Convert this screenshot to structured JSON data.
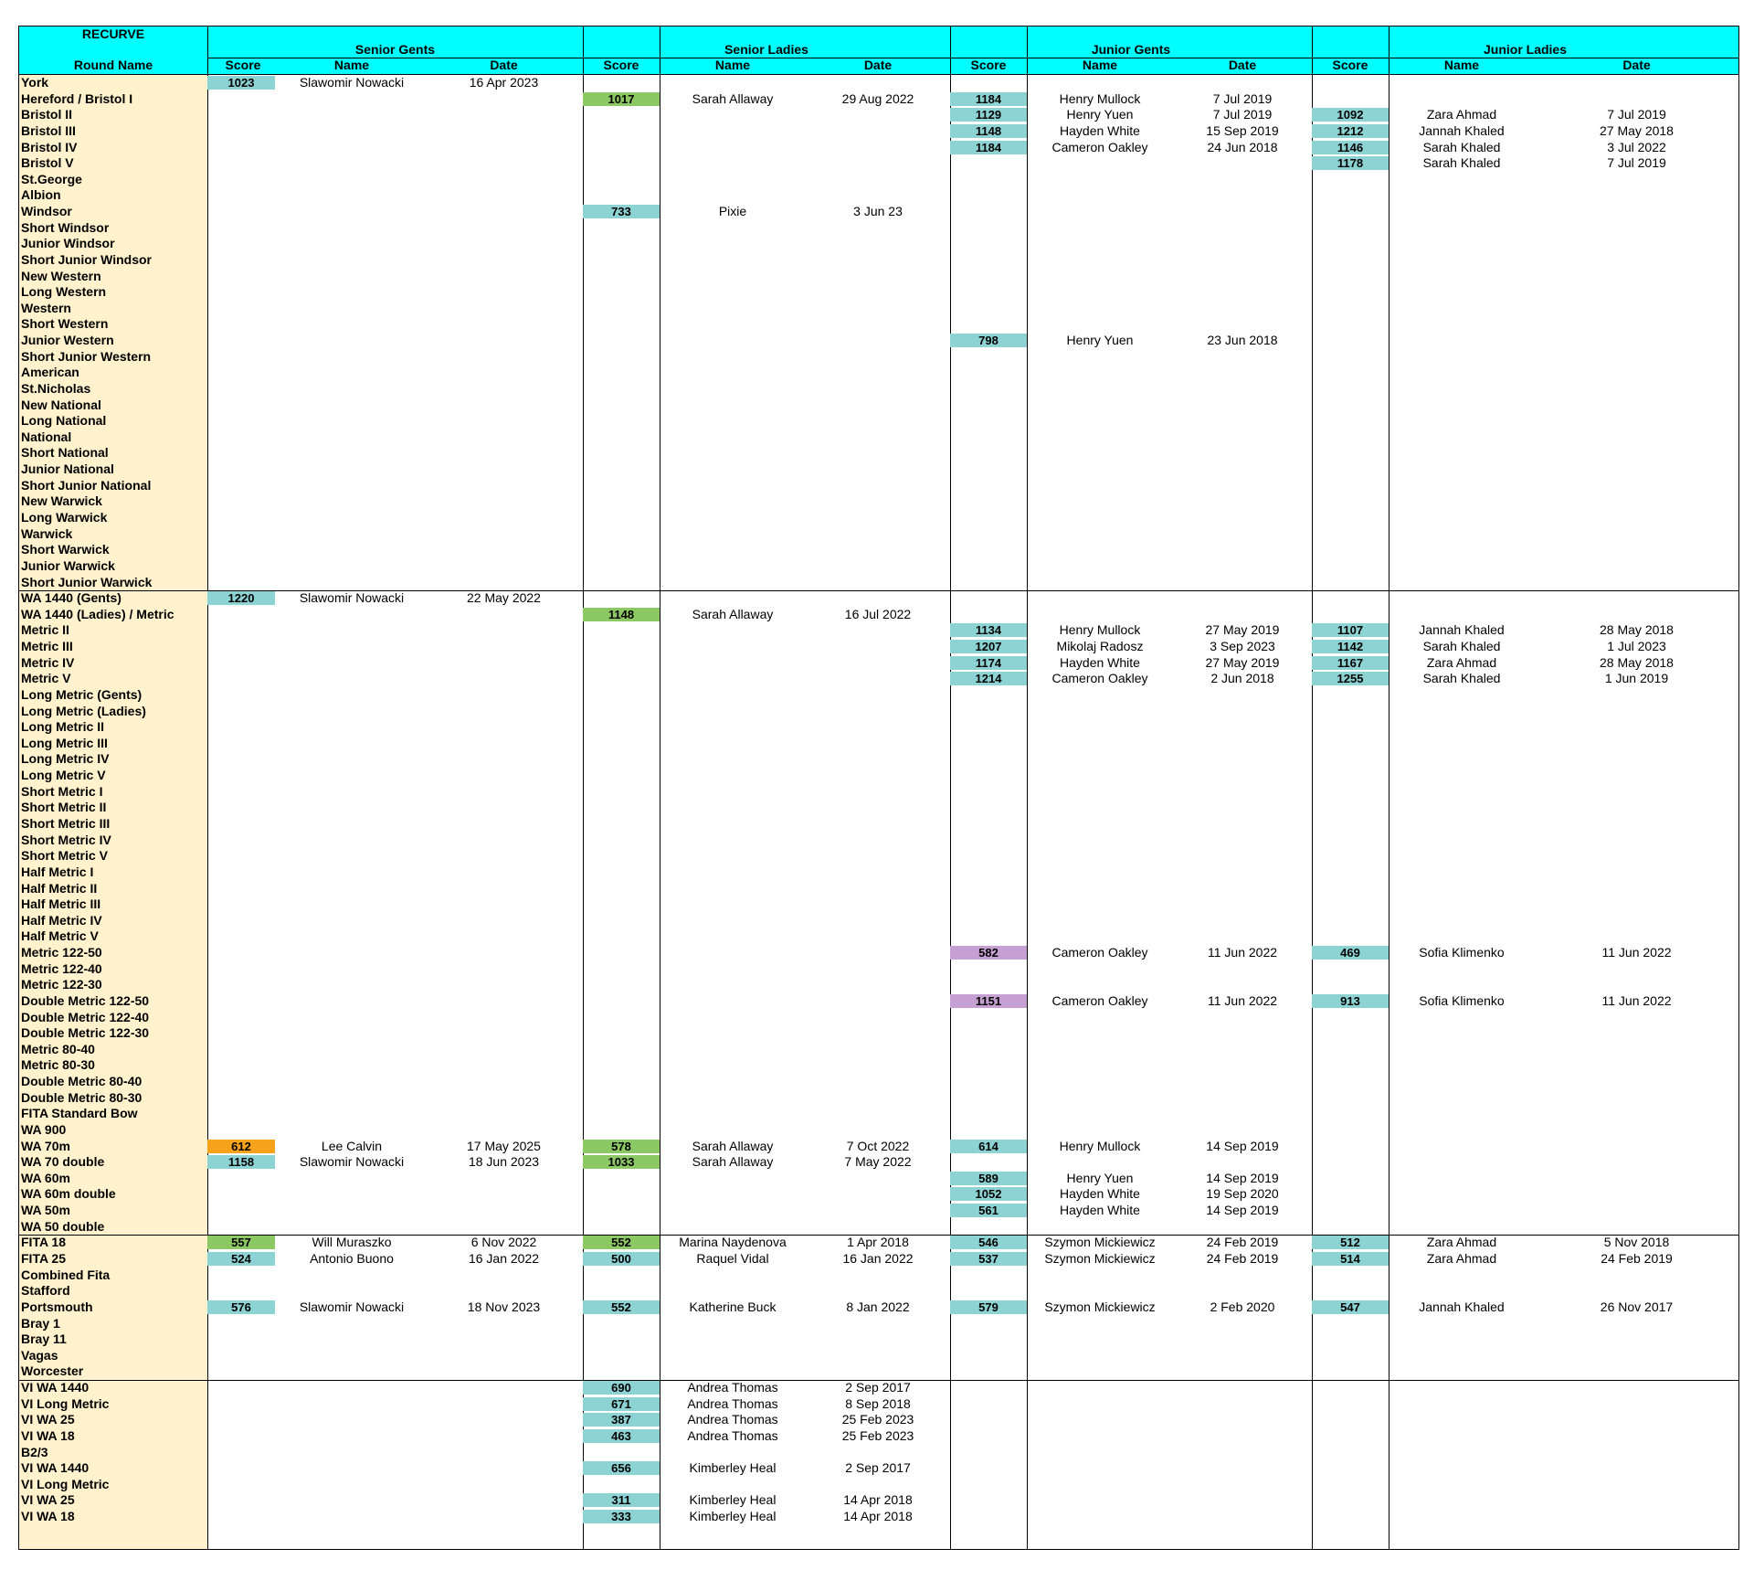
{
  "title": "RECURVE",
  "groups": [
    "Senior Gents",
    "Senior Ladies",
    "Junior Gents",
    "Junior Ladies"
  ],
  "subheaders": {
    "round_name": "Round Name",
    "score": "Score",
    "name": "Name",
    "date": "Date"
  },
  "colors": {
    "header": "#00ffff",
    "round_bg": "#fff2cc",
    "teal": "#8dd3d3",
    "green": "#8cc863",
    "orange": "#f7a21b",
    "purple": "#c7a0d3"
  },
  "rows": [
    {
      "n": "York",
      "sg": [
        "1023",
        "Slawomir Nowacki",
        "16 Apr 2023",
        "teal"
      ]
    },
    {
      "n": "Hereford / Bristol I",
      "sl": [
        "1017",
        "Sarah Allaway",
        "29 Aug 2022",
        "green"
      ],
      "jg": [
        "1184",
        "Henry Mullock",
        "7 Jul 2019",
        "teal"
      ]
    },
    {
      "n": "Bristol II",
      "jg": [
        "1129",
        "Henry Yuen",
        "7 Jul 2019",
        "teal"
      ],
      "jl": [
        "1092",
        "Zara Ahmad",
        "7 Jul 2019",
        "teal"
      ]
    },
    {
      "n": "Bristol III",
      "jg": [
        "1148",
        "Hayden White",
        "15 Sep 2019",
        "teal"
      ],
      "jl": [
        "1212",
        "Jannah Khaled",
        "27 May 2018",
        "teal"
      ]
    },
    {
      "n": "Bristol IV",
      "jg": [
        "1184",
        "Cameron Oakley",
        "24 Jun 2018",
        "teal"
      ],
      "jl": [
        "1146",
        "Sarah Khaled",
        "3 Jul 2022",
        "teal"
      ]
    },
    {
      "n": "Bristol V",
      "jl": [
        "1178",
        "Sarah Khaled",
        "7 Jul 2019",
        "teal"
      ]
    },
    {
      "n": "St.George"
    },
    {
      "n": "Albion"
    },
    {
      "n": "Windsor",
      "sl": [
        "733",
        "Pixie",
        "3 Jun 23",
        "teal"
      ]
    },
    {
      "n": "Short Windsor"
    },
    {
      "n": "Junior Windsor"
    },
    {
      "n": "Short Junior Windsor"
    },
    {
      "n": "New Western"
    },
    {
      "n": "Long Western"
    },
    {
      "n": "Western"
    },
    {
      "n": "Short Western"
    },
    {
      "n": "Junior Western",
      "jg": [
        "798",
        "Henry Yuen",
        "23 Jun 2018",
        "teal"
      ]
    },
    {
      "n": "Short Junior Western"
    },
    {
      "n": "American"
    },
    {
      "n": "St.Nicholas"
    },
    {
      "n": "New National"
    },
    {
      "n": "Long National"
    },
    {
      "n": "National"
    },
    {
      "n": "Short National"
    },
    {
      "n": "Junior National"
    },
    {
      "n": "Short Junior National"
    },
    {
      "n": "New Warwick"
    },
    {
      "n": "Long Warwick"
    },
    {
      "n": "Warwick"
    },
    {
      "n": "Short Warwick"
    },
    {
      "n": "Junior Warwick"
    },
    {
      "n": "Short Junior Warwick"
    },
    {
      "n": "WA 1440 (Gents)",
      "sg": [
        "1220",
        "Slawomir Nowacki",
        "22 May 2022",
        "teal"
      ],
      "sep": true
    },
    {
      "n": "WA 1440 (Ladies) / Metric",
      "sl": [
        "1148",
        "Sarah Allaway",
        "16 Jul 2022",
        "green"
      ]
    },
    {
      "n": "Metric II",
      "jg": [
        "1134",
        "Henry Mullock",
        "27 May 2019",
        "teal"
      ],
      "jl": [
        "1107",
        "Jannah Khaled",
        "28 May 2018",
        "teal"
      ]
    },
    {
      "n": "Metric III",
      "jg": [
        "1207",
        "Mikolaj Radosz",
        "3 Sep 2023",
        "teal"
      ],
      "jl": [
        "1142",
        "Sarah Khaled",
        "1 Jul 2023",
        "teal"
      ]
    },
    {
      "n": "Metric IV",
      "jg": [
        "1174",
        "Hayden White",
        "27 May 2019",
        "teal"
      ],
      "jl": [
        "1167",
        "Zara Ahmad",
        "28 May 2018",
        "teal"
      ]
    },
    {
      "n": "Metric V",
      "jg": [
        "1214",
        "Cameron Oakley",
        "2 Jun 2018",
        "teal"
      ],
      "jl": [
        "1255",
        "Sarah Khaled",
        "1 Jun 2019",
        "teal"
      ]
    },
    {
      "n": "Long Metric (Gents)"
    },
    {
      "n": "Long Metric (Ladies)"
    },
    {
      "n": "Long Metric II"
    },
    {
      "n": "Long Metric III"
    },
    {
      "n": "Long Metric IV"
    },
    {
      "n": "Long Metric V"
    },
    {
      "n": "Short Metric I"
    },
    {
      "n": "Short Metric II"
    },
    {
      "n": "Short Metric III"
    },
    {
      "n": "Short Metric IV"
    },
    {
      "n": "Short Metric V"
    },
    {
      "n": "Half Metric I"
    },
    {
      "n": "Half Metric II"
    },
    {
      "n": "Half Metric III"
    },
    {
      "n": "Half Metric IV"
    },
    {
      "n": "Half Metric V"
    },
    {
      "n": "Metric 122-50",
      "jg": [
        "582",
        "Cameron Oakley",
        "11 Jun 2022",
        "purple"
      ],
      "jl": [
        "469",
        "Sofia Klimenko",
        "11 Jun 2022",
        "teal"
      ]
    },
    {
      "n": "Metric 122-40"
    },
    {
      "n": "Metric 122-30"
    },
    {
      "n": "Double Metric 122-50",
      "jg": [
        "1151",
        "Cameron Oakley",
        "11 Jun 2022",
        "purple"
      ],
      "jl": [
        "913",
        "Sofia Klimenko",
        "11 Jun 2022",
        "teal"
      ]
    },
    {
      "n": "Double Metric 122-40"
    },
    {
      "n": "Double Metric 122-30"
    },
    {
      "n": "Metric 80-40"
    },
    {
      "n": "Metric 80-30"
    },
    {
      "n": "Double Metric 80-40"
    },
    {
      "n": "Double Metric 80-30"
    },
    {
      "n": "FITA Standard Bow"
    },
    {
      "n": "WA 900"
    },
    {
      "n": "WA 70m",
      "sg": [
        "612",
        "Lee Calvin",
        "17 May 2025",
        "orange"
      ],
      "sl": [
        "578",
        "Sarah Allaway",
        "7 Oct 2022",
        "green"
      ],
      "jg": [
        "614",
        "Henry Mullock",
        "14 Sep 2019",
        "teal"
      ]
    },
    {
      "n": "WA 70 double",
      "sg": [
        "1158",
        "Slawomir Nowacki",
        "18 Jun 2023",
        "teal"
      ],
      "sl": [
        "1033",
        "Sarah Allaway",
        "7 May 2022",
        "green"
      ]
    },
    {
      "n": "WA 60m",
      "jg": [
        "589",
        "Henry Yuen",
        "14 Sep 2019",
        "teal"
      ]
    },
    {
      "n": "WA 60m double",
      "jg": [
        "1052",
        "Hayden White",
        "19 Sep 2020",
        "teal"
      ]
    },
    {
      "n": "WA 50m",
      "jg": [
        "561",
        "Hayden White",
        "14 Sep 2019",
        "teal"
      ]
    },
    {
      "n": "WA 50 double"
    },
    {
      "n": "FITA 18",
      "sg": [
        "557",
        "Will Muraszko",
        "6 Nov 2022",
        "green"
      ],
      "sl": [
        "552",
        "Marina Naydenova",
        "1 Apr 2018",
        "green"
      ],
      "jg": [
        "546",
        "Szymon Mickiewicz",
        "24 Feb 2019",
        "teal"
      ],
      "jl": [
        "512",
        "Zara Ahmad",
        "5 Nov 2018",
        "teal"
      ],
      "sep": true
    },
    {
      "n": "FITA 25",
      "sg": [
        "524",
        "Antonio Buono",
        "16 Jan 2022",
        "teal"
      ],
      "sl": [
        "500",
        "Raquel Vidal",
        "16 Jan 2022",
        "teal"
      ],
      "jg": [
        "537",
        "Szymon Mickiewicz",
        "24 Feb 2019",
        "teal"
      ],
      "jl": [
        "514",
        "Zara Ahmad",
        "24 Feb 2019",
        "teal"
      ]
    },
    {
      "n": "Combined Fita"
    },
    {
      "n": "Stafford"
    },
    {
      "n": "Portsmouth",
      "sg": [
        "576",
        "Slawomir Nowacki",
        "18 Nov 2023",
        "teal"
      ],
      "sl": [
        "552",
        "Katherine Buck",
        "8 Jan 2022",
        "teal"
      ],
      "jg": [
        "579",
        "Szymon Mickiewicz",
        "2 Feb 2020",
        "teal"
      ],
      "jl": [
        "547",
        "Jannah Khaled",
        "26 Nov 2017",
        "teal"
      ]
    },
    {
      "n": "Bray 1"
    },
    {
      "n": "Bray 11"
    },
    {
      "n": "Vagas"
    },
    {
      "n": "Worcester"
    },
    {
      "n": "VI WA 1440",
      "sl": [
        "690",
        "Andrea Thomas",
        "2 Sep 2017",
        "teal"
      ],
      "sep": true
    },
    {
      "n": "VI Long Metric",
      "sl": [
        "671",
        "Andrea Thomas",
        "8 Sep 2018",
        "teal"
      ]
    },
    {
      "n": "VI WA 25",
      "sl": [
        "387",
        "Andrea Thomas",
        "25 Feb 2023",
        "teal"
      ]
    },
    {
      "n": "VI WA 18",
      "sl": [
        "463",
        "Andrea Thomas",
        "25 Feb 2023",
        "teal"
      ]
    },
    {
      "n": "B2/3"
    },
    {
      "n": "VI WA 1440",
      "sl": [
        "656",
        "Kimberley Heal",
        "2 Sep 2017",
        "teal"
      ]
    },
    {
      "n": "VI Long Metric"
    },
    {
      "n": "VI WA 25",
      "sl": [
        "311",
        "Kimberley Heal",
        "14 Apr 2018",
        "teal"
      ]
    },
    {
      "n": "VI WA 18",
      "sl": [
        "333",
        "Kimberley Heal",
        "14 Apr 2018",
        "teal"
      ]
    }
  ]
}
